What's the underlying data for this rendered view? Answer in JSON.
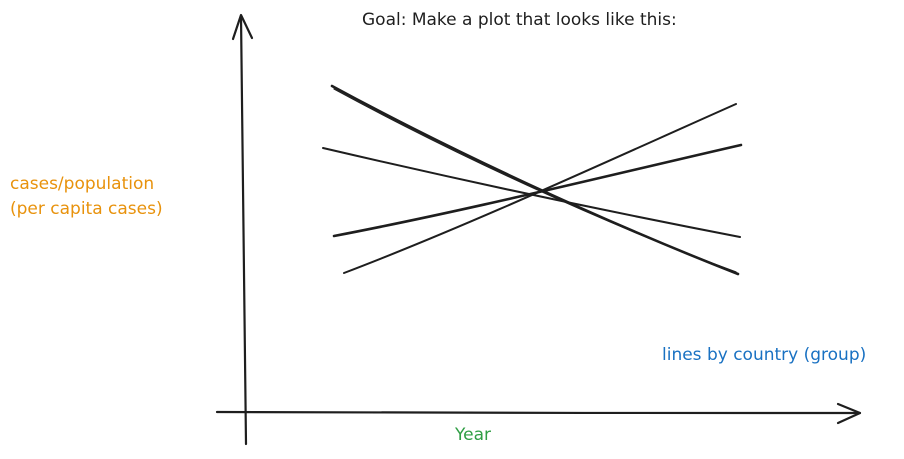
{
  "title": "Goal: Make a plot that looks like this:",
  "y_label": {
    "lines": [
      "cases/population",
      "(per capita cases)"
    ]
  },
  "x_label": "Year",
  "lines_note": "lines by country (group)",
  "colors": {
    "ink": "#1e1e1e",
    "y_label": "#e8920c",
    "x_label": "#2f9e44",
    "lines_note": "#1971c2"
  },
  "lines": [
    {
      "id": "line-1",
      "direction": "falling-steep"
    },
    {
      "id": "line-2",
      "direction": "falling-gentle"
    },
    {
      "id": "line-3",
      "direction": "rising-gentle"
    },
    {
      "id": "line-4",
      "direction": "rising-steep"
    }
  ]
}
